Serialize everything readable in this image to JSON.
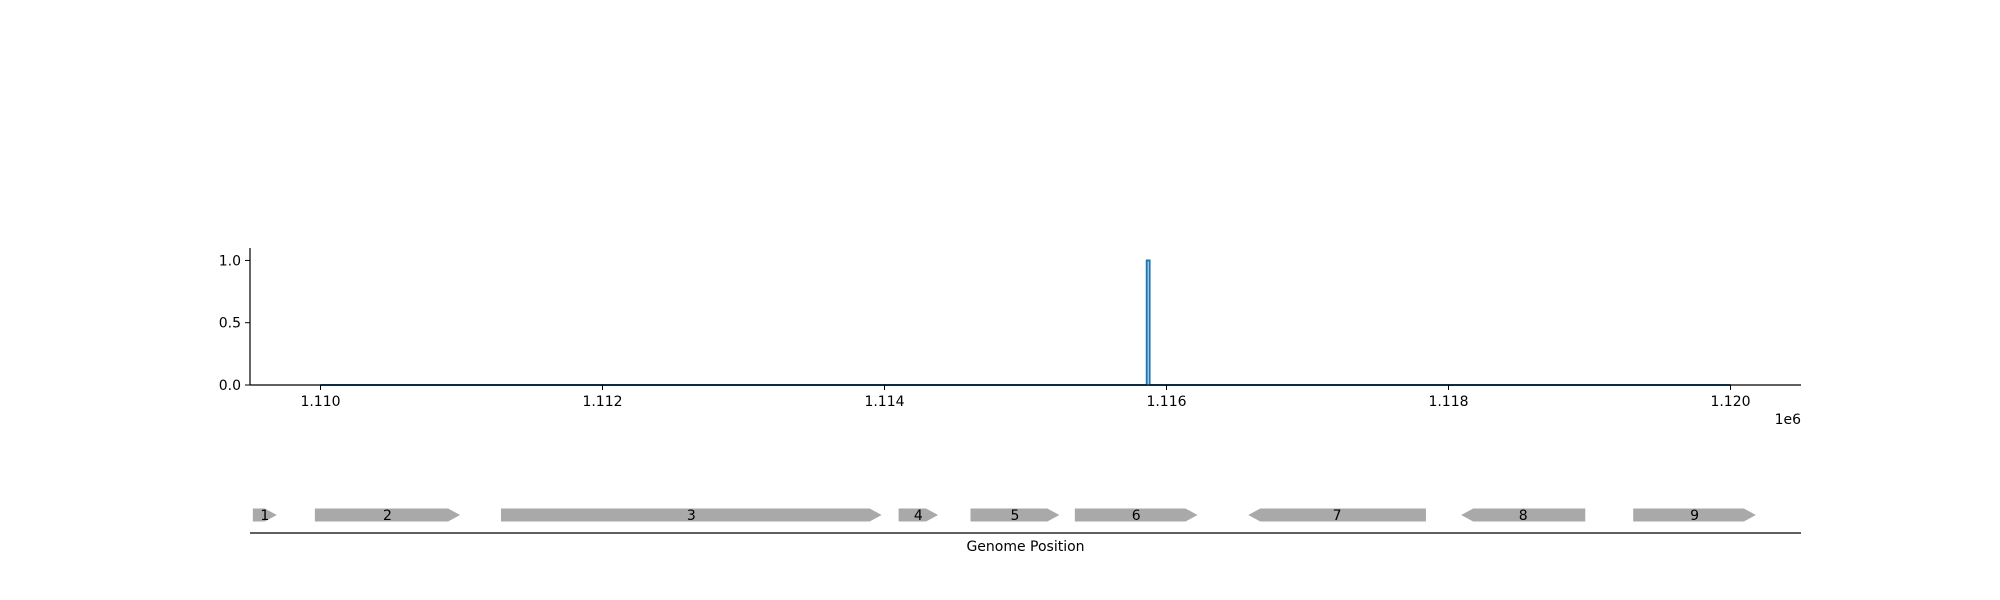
{
  "chart_data": [
    {
      "type": "line",
      "x_offset_label": "1e6",
      "x_tick_labels": [
        "1.110",
        "1.112",
        "1.114",
        "1.116",
        "1.118",
        "1.120"
      ],
      "x_ticks": [
        1110000,
        1112000,
        1114000,
        1116000,
        1118000,
        1120000
      ],
      "y_tick_labels": [
        "0.0",
        "0.5",
        "1.0"
      ],
      "y_ticks": [
        0.0,
        0.5,
        1.0
      ],
      "xlim": [
        1109500,
        1120500
      ],
      "ylim": [
        0,
        1.1
      ],
      "grid": false,
      "series": [
        {
          "color": "#1f77b4",
          "x": [
            1110000,
            1115860,
            1115860,
            1115880,
            1115880,
            1120000
          ],
          "y": [
            0,
            0,
            1.0,
            1.0,
            0,
            0
          ]
        }
      ]
    },
    {
      "type": "gene-track",
      "xlabel": "Genome Position",
      "feature_color": "#a9a9a9",
      "xlim": [
        1109500,
        1120500
      ],
      "genes": [
        {
          "label": "1",
          "start": 1109520,
          "end": 1109690,
          "strand": "+"
        },
        {
          "label": "2",
          "start": 1109960,
          "end": 1110990,
          "strand": "+"
        },
        {
          "label": "3",
          "start": 1111280,
          "end": 1113980,
          "strand": "+"
        },
        {
          "label": "4",
          "start": 1114100,
          "end": 1114380,
          "strand": "+"
        },
        {
          "label": "5",
          "start": 1114610,
          "end": 1115240,
          "strand": "+"
        },
        {
          "label": "6",
          "start": 1115350,
          "end": 1116220,
          "strand": "+"
        },
        {
          "label": "7",
          "start": 1116580,
          "end": 1117840,
          "strand": "-"
        },
        {
          "label": "8",
          "start": 1118090,
          "end": 1118970,
          "strand": "-"
        },
        {
          "label": "9",
          "start": 1119310,
          "end": 1120180,
          "strand": "+"
        }
      ]
    }
  ]
}
